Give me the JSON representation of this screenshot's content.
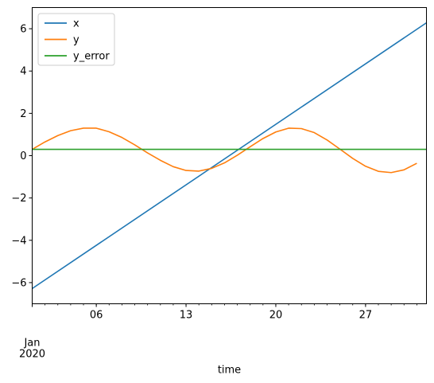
{
  "chart_data": {
    "type": "line",
    "title": "",
    "xlabel": "time",
    "ylabel": "",
    "xlim": [
      "2020-01-01",
      "2020-01-31T18:00:00"
    ],
    "ylim": [
      -7,
      7
    ],
    "x_major_ticks": [
      {
        "date": "2020-01-06",
        "label": "06"
      },
      {
        "date": "2020-01-13",
        "label": "13"
      },
      {
        "date": "2020-01-20",
        "label": "20"
      },
      {
        "date": "2020-01-27",
        "label": "27"
      }
    ],
    "x_period_label": [
      "Jan",
      "2020"
    ],
    "y_ticks": [
      -6,
      -4,
      -2,
      0,
      2,
      4,
      6
    ],
    "y_tick_labels": [
      "−6",
      "−4",
      "−2",
      "0",
      "2",
      "4",
      "6"
    ],
    "grid": false,
    "legend": {
      "position": "top-left"
    },
    "series": [
      {
        "name": "x",
        "color": "#1f77b4",
        "x": [
          "2020-01-01",
          "2020-01-31T18:00:00"
        ],
        "values": [
          -6.28,
          6.28
        ]
      },
      {
        "name": "y",
        "color": "#ff7f0e",
        "x": [
          "2020-01-01",
          "2020-01-02",
          "2020-01-03",
          "2020-01-04",
          "2020-01-05",
          "2020-01-06",
          "2020-01-07",
          "2020-01-08",
          "2020-01-09",
          "2020-01-10",
          "2020-01-11",
          "2020-01-12",
          "2020-01-13",
          "2020-01-14",
          "2020-01-15",
          "2020-01-16",
          "2020-01-17",
          "2020-01-18",
          "2020-01-19",
          "2020-01-20",
          "2020-01-21",
          "2020-01-22",
          "2020-01-23",
          "2020-01-24",
          "2020-01-25",
          "2020-01-26",
          "2020-01-27",
          "2020-01-28",
          "2020-01-29",
          "2020-01-30",
          "2020-01-31"
        ],
        "values": [
          0.3,
          0.65,
          0.95,
          1.18,
          1.3,
          1.3,
          1.13,
          0.86,
          0.51,
          0.13,
          -0.22,
          -0.52,
          -0.7,
          -0.73,
          -0.6,
          -0.34,
          0.02,
          0.42,
          0.81,
          1.12,
          1.3,
          1.28,
          1.09,
          0.74,
          0.31,
          -0.13,
          -0.5,
          -0.74,
          -0.8,
          -0.67,
          -0.36
        ]
      },
      {
        "name": "y_error",
        "color": "#2ca02c",
        "x": [
          "2020-01-01",
          "2020-01-31T18:00:00"
        ],
        "values": [
          0.3,
          0.3
        ]
      }
    ]
  }
}
